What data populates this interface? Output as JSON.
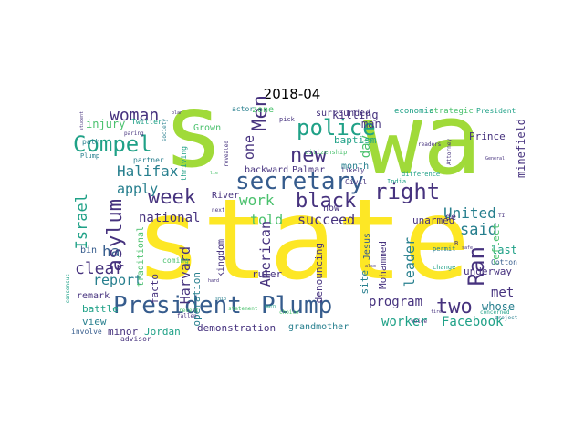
{
  "title": "2018-04",
  "palette": {
    "yellow": "#fde725",
    "lime": "#a0da39",
    "green": "#4ac16d",
    "teal": "#1fa187",
    "cyan": "#277f8e",
    "blue": "#365c8d",
    "indigo": "#46327e",
    "purple": "#440154"
  },
  "words": [
    {
      "text": "state",
      "color": "yellow"
    },
    {
      "text": "wa",
      "color": "lime"
    },
    {
      "text": "s",
      "color": "lime"
    },
    {
      "text": "President",
      "color": "blue"
    },
    {
      "text": "Plump",
      "color": "blue"
    },
    {
      "text": "secretary",
      "color": "blue"
    },
    {
      "text": "police",
      "color": "teal"
    },
    {
      "text": "right",
      "color": "indigo"
    },
    {
      "text": "black",
      "color": "indigo"
    },
    {
      "text": "Compel",
      "color": "teal"
    },
    {
      "text": "asylum",
      "color": "indigo"
    },
    {
      "text": "week",
      "color": "indigo"
    },
    {
      "text": "Men",
      "color": "indigo"
    },
    {
      "text": "new",
      "color": "indigo"
    },
    {
      "text": "Ran",
      "color": "indigo"
    },
    {
      "text": "two",
      "color": "indigo"
    },
    {
      "text": "woman",
      "color": "indigo"
    },
    {
      "text": "United",
      "color": "cyan"
    },
    {
      "text": "said",
      "color": "cyan"
    },
    {
      "text": "Halifax",
      "color": "cyan"
    },
    {
      "text": "Israel",
      "color": "teal"
    },
    {
      "text": "clear",
      "color": "indigo"
    },
    {
      "text": "report",
      "color": "cyan"
    },
    {
      "text": "apply",
      "color": "cyan"
    },
    {
      "text": "told",
      "color": "green"
    },
    {
      "text": "succeed",
      "color": "indigo"
    },
    {
      "text": "national",
      "color": "indigo"
    },
    {
      "text": "work",
      "color": "green"
    },
    {
      "text": "American",
      "color": "indigo"
    },
    {
      "text": "Harvard",
      "color": "indigo"
    },
    {
      "text": "program",
      "color": "indigo"
    },
    {
      "text": "Facebook",
      "color": "teal"
    },
    {
      "text": "worker",
      "color": "teal"
    },
    {
      "text": "leader",
      "color": "cyan"
    },
    {
      "text": "day",
      "color": "green"
    },
    {
      "text": "one",
      "color": "indigo"
    },
    {
      "text": "ha",
      "color": "blue"
    },
    {
      "text": "met",
      "color": "indigo"
    },
    {
      "text": "last",
      "color": "teal"
    },
    {
      "text": "whose",
      "color": "cyan"
    },
    {
      "text": "underway",
      "color": "indigo"
    },
    {
      "text": "minefield",
      "color": "indigo"
    },
    {
      "text": "Prince",
      "color": "indigo"
    },
    {
      "text": "unarmed",
      "color": "indigo"
    },
    {
      "text": "demonstration",
      "color": "indigo"
    },
    {
      "text": "grandmother",
      "color": "cyan"
    },
    {
      "text": "Mohammed",
      "color": "indigo"
    },
    {
      "text": "Jordan",
      "color": "teal"
    },
    {
      "text": "minor",
      "color": "indigo"
    },
    {
      "text": "battle",
      "color": "teal"
    },
    {
      "text": "view",
      "color": "cyan"
    },
    {
      "text": "remark",
      "color": "indigo"
    },
    {
      "text": "facto",
      "color": "indigo"
    },
    {
      "text": "bin",
      "color": "blue"
    },
    {
      "text": "operation",
      "color": "cyan"
    },
    {
      "text": "kingdom",
      "color": "indigo"
    },
    {
      "text": "ruler",
      "color": "indigo"
    },
    {
      "text": "denouncing",
      "color": "indigo"
    },
    {
      "text": "surrounded",
      "color": "indigo"
    },
    {
      "text": "killing",
      "color": "indigo"
    },
    {
      "text": "man",
      "color": "indigo"
    },
    {
      "text": "month",
      "color": "cyan"
    },
    {
      "text": "backward",
      "color": "indigo"
    },
    {
      "text": "Palmar",
      "color": "indigo"
    },
    {
      "text": "River",
      "color": "indigo"
    },
    {
      "text": "Grown",
      "color": "green"
    },
    {
      "text": "zone",
      "color": "green"
    },
    {
      "text": "baptism",
      "color": "teal"
    },
    {
      "text": "reflect",
      "color": "green"
    },
    {
      "text": "site",
      "color": "cyan"
    },
    {
      "text": "Jesus",
      "color": "blue"
    },
    {
      "text": "traditional",
      "color": "green"
    },
    {
      "text": "injury",
      "color": "green"
    },
    {
      "text": "now",
      "color": "indigo"
    },
    {
      "text": "strategic",
      "color": "green"
    },
    {
      "text": "economic",
      "color": "teal"
    },
    {
      "text": "President",
      "color": "teal"
    },
    {
      "text": "de",
      "color": "indigo"
    },
    {
      "text": "Civil",
      "color": "indigo"
    },
    {
      "text": "Cotton",
      "color": "blue"
    },
    {
      "text": "path",
      "color": "cyan"
    },
    {
      "text": "partner",
      "color": "cyan"
    },
    {
      "text": "thriving",
      "color": "teal"
    },
    {
      "text": "coming",
      "color": "green"
    },
    {
      "text": "advisor",
      "color": "indigo"
    },
    {
      "text": "involve",
      "color": "blue"
    },
    {
      "text": "actor",
      "color": "cyan"
    },
    {
      "text": "pick",
      "color": "indigo"
    },
    {
      "text": "citizenship",
      "color": "green"
    },
    {
      "text": "Twitter",
      "color": "teal"
    },
    {
      "text": "revealed",
      "color": "indigo"
    },
    {
      "text": "India",
      "color": "teal"
    },
    {
      "text": "likely",
      "color": "indigo"
    },
    {
      "text": "permit",
      "color": "cyan"
    },
    {
      "text": "change",
      "color": "teal"
    },
    {
      "text": "difference",
      "color": "teal"
    },
    {
      "text": "statement",
      "color": "green"
    },
    {
      "text": "concerned",
      "color": "teal"
    },
    {
      "text": "society",
      "color": "cyan"
    },
    {
      "text": "paring",
      "color": "indigo"
    },
    {
      "text": "voice",
      "color": "indigo"
    },
    {
      "text": "project",
      "color": "cyan"
    },
    {
      "text": "recent",
      "color": "green"
    },
    {
      "text": "next",
      "color": "indigo"
    },
    {
      "text": "choice",
      "color": "green"
    },
    {
      "text": "Plump",
      "color": "cyan"
    },
    {
      "text": "fallen",
      "color": "indigo"
    },
    {
      "text": "readers",
      "color": "indigo"
    },
    {
      "text": "Attorney",
      "color": "indigo"
    },
    {
      "text": "plan",
      "color": "indigo"
    },
    {
      "text": "student",
      "color": "indigo"
    },
    {
      "text": "consensus",
      "color": "teal"
    },
    {
      "text": "General",
      "color": "indigo"
    },
    {
      "text": "ship",
      "color": "cyan"
    },
    {
      "text": "fire",
      "color": "indigo"
    },
    {
      "text": "also",
      "color": "indigo"
    },
    {
      "text": "warn",
      "color": "teal"
    },
    {
      "text": "hard",
      "color": "indigo"
    },
    {
      "text": "B",
      "color": "indigo"
    },
    {
      "text": "TI",
      "color": "indigo"
    },
    {
      "text": "safe",
      "color": "indigo"
    },
    {
      "text": "lie",
      "color": "green"
    }
  ]
}
